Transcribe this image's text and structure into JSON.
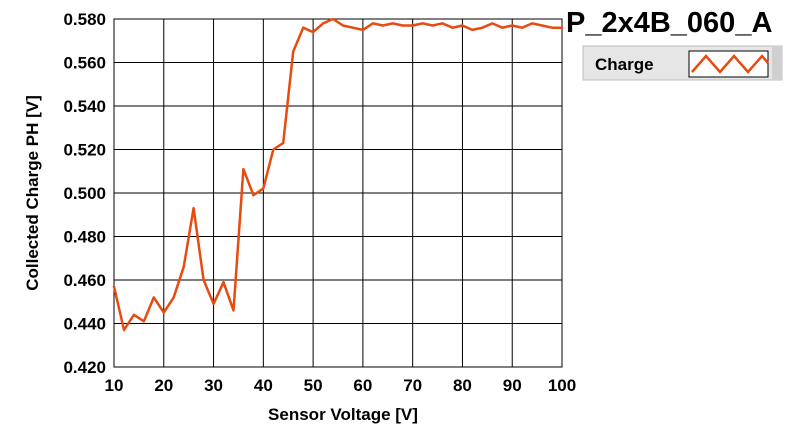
{
  "chart_data": {
    "type": "line",
    "title": "P_2x4B_060_A",
    "xlabel": "Sensor Voltage [V]",
    "ylabel": "Collected Charge PH [V]",
    "xlim": [
      10,
      100
    ],
    "ylim": [
      0.42,
      0.58
    ],
    "xticks": [
      "10",
      "20",
      "30",
      "40",
      "50",
      "60",
      "70",
      "80",
      "90",
      "100"
    ],
    "yticks": [
      "0.420",
      "0.440",
      "0.460",
      "0.480",
      "0.500",
      "0.520",
      "0.540",
      "0.560",
      "0.580"
    ],
    "grid": true,
    "legend_position": "top-right",
    "series": [
      {
        "name": "Charge",
        "color": "#e84a0f",
        "x": [
          10,
          12,
          14,
          16,
          18,
          20,
          22,
          24,
          26,
          28,
          30,
          32,
          34,
          36,
          38,
          40,
          42,
          44,
          46,
          48,
          50,
          52,
          54,
          56,
          58,
          60,
          62,
          64,
          66,
          68,
          70,
          72,
          74,
          76,
          78,
          80,
          82,
          84,
          86,
          88,
          90,
          92,
          94,
          96,
          98,
          100
        ],
        "y": [
          0.457,
          0.437,
          0.444,
          0.441,
          0.452,
          0.445,
          0.452,
          0.466,
          0.493,
          0.46,
          0.449,
          0.459,
          0.446,
          0.511,
          0.499,
          0.502,
          0.52,
          0.523,
          0.565,
          0.576,
          0.574,
          0.578,
          0.58,
          0.577,
          0.576,
          0.575,
          0.578,
          0.577,
          0.578,
          0.577,
          0.577,
          0.578,
          0.577,
          0.578,
          0.576,
          0.577,
          0.575,
          0.576,
          0.578,
          0.576,
          0.577,
          0.576,
          0.578,
          0.577,
          0.576,
          0.576
        ]
      }
    ]
  }
}
